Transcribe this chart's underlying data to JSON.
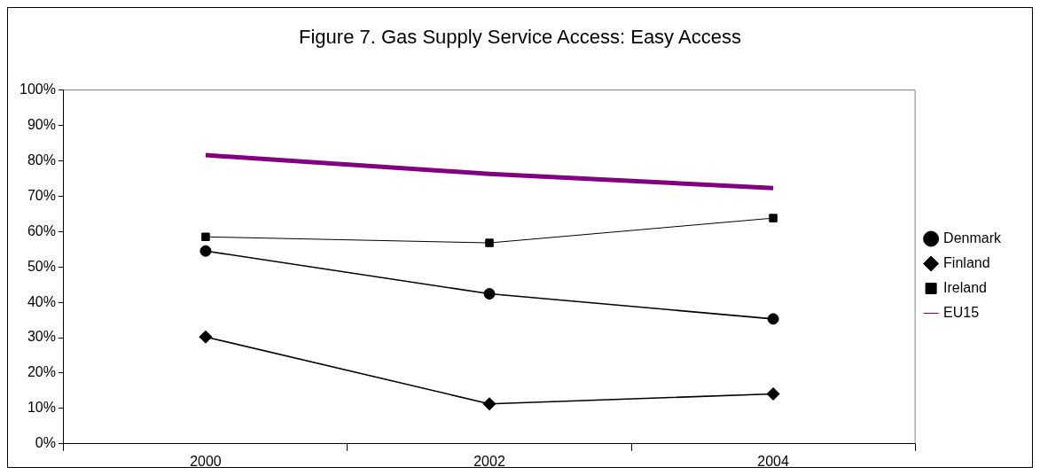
{
  "chart_data": {
    "type": "line",
    "title": "Figure 7. Gas Supply Service Access: Easy Access",
    "categories": [
      "2000",
      "2002",
      "2004"
    ],
    "series": [
      {
        "name": "Denmark",
        "color": "#000000",
        "marker": "circle",
        "values": [
          54.5,
          42.4,
          35.3
        ]
      },
      {
        "name": "Finland",
        "color": "#000000",
        "marker": "diamond",
        "values": [
          30.2,
          11.3,
          14.1
        ]
      },
      {
        "name": "Ireland",
        "color": "#000000",
        "marker": "square",
        "values": [
          58.5,
          56.8,
          63.8
        ]
      },
      {
        "name": "EU15",
        "color": "#800080",
        "marker": "none",
        "values": [
          81.6,
          76.3,
          72.3
        ]
      }
    ],
    "ylim": [
      0,
      100
    ],
    "yticks": [
      {
        "value": 0,
        "label": "0%"
      },
      {
        "value": 10,
        "label": "10%"
      },
      {
        "value": 20,
        "label": "20%"
      },
      {
        "value": 30,
        "label": "30%"
      },
      {
        "value": 40,
        "label": "40%"
      },
      {
        "value": 50,
        "label": "50%"
      },
      {
        "value": 60,
        "label": "60%"
      },
      {
        "value": 70,
        "label": "70%"
      },
      {
        "value": 80,
        "label": "80%"
      },
      {
        "value": 90,
        "label": "90%"
      },
      {
        "value": 100,
        "label": "100%"
      }
    ],
    "grid": false,
    "legend": "right"
  }
}
